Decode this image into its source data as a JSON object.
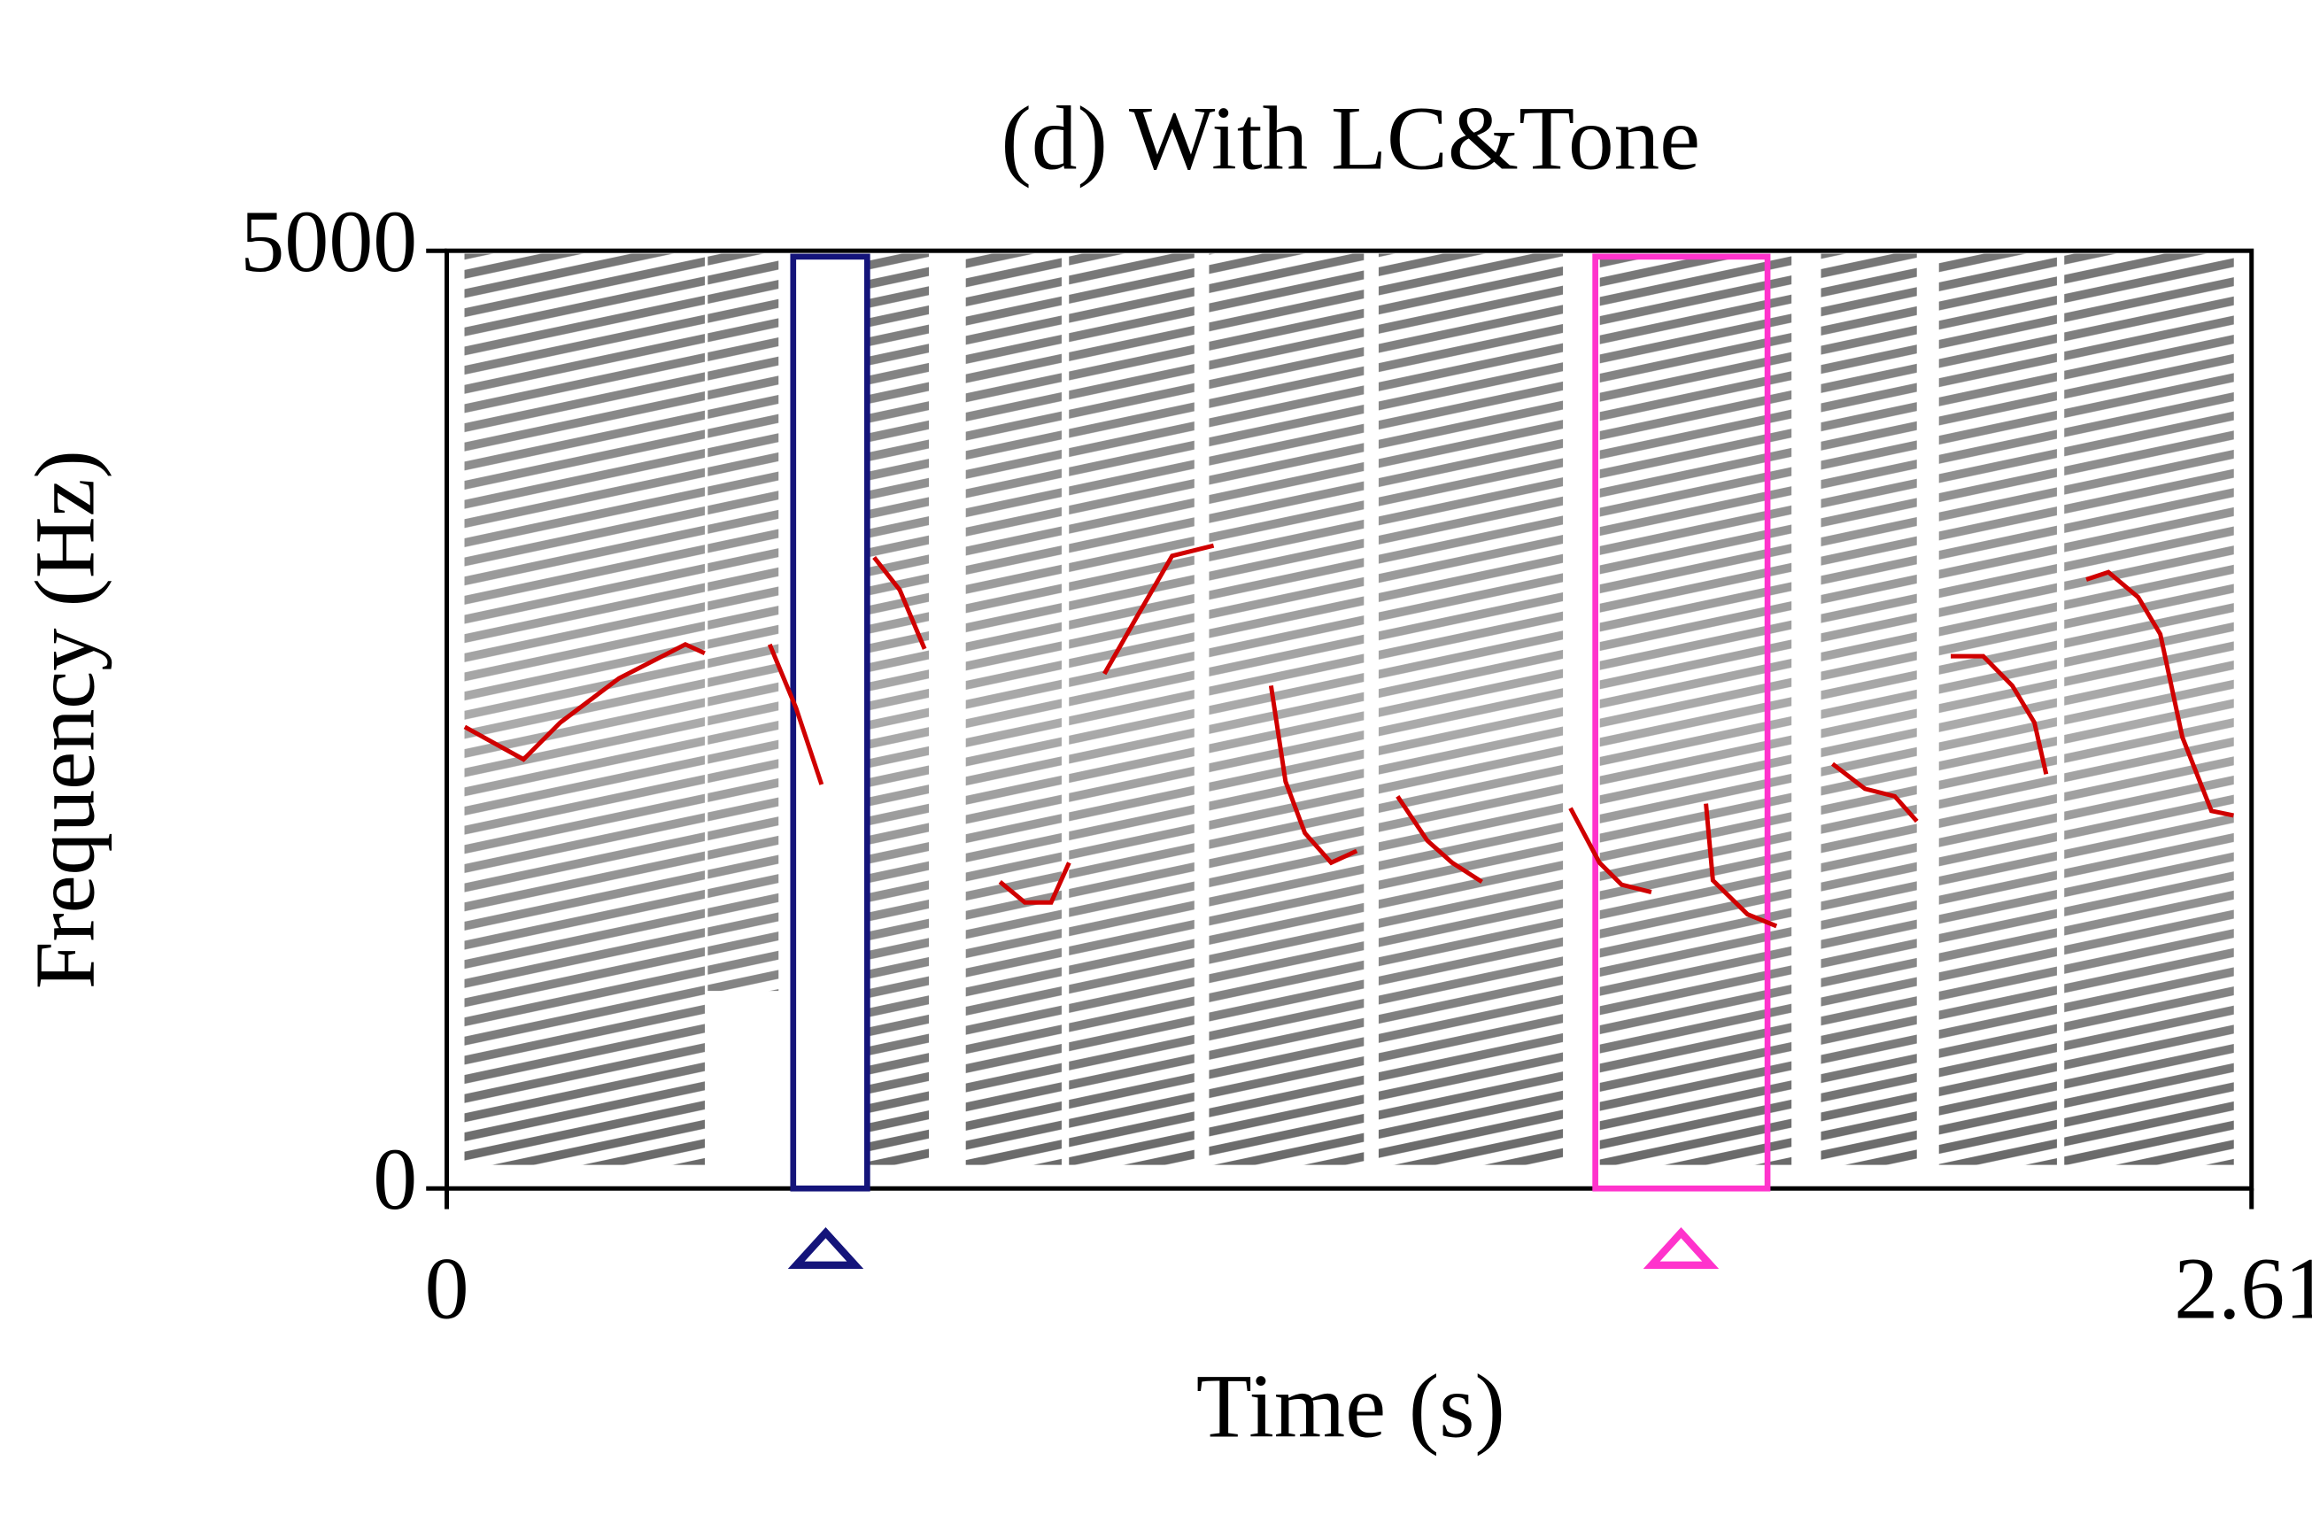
{
  "chart_data": {
    "type": "spectrogram",
    "title": "(d) With LC&Tone",
    "xlabel": "Time (s)",
    "ylabel": "Frequency (Hz)",
    "xlim": [
      0,
      2.61
    ],
    "ylim": [
      0,
      5000
    ],
    "xticks": [
      0,
      2.61
    ],
    "yticks": [
      0,
      5000
    ],
    "pitch_contour": {
      "color": "#d00000",
      "x": [
        0.026,
        0.111,
        0.164,
        0.249,
        0.345,
        0.373,
        null,
        0.467,
        0.505,
        0.542,
        null,
        0.618,
        0.655,
        0.691,
        null,
        0.8,
        0.836,
        0.874,
        0.9,
        null,
        0.951,
        0.996,
        1.049,
        1.109,
        null,
        1.192,
        1.213,
        1.241,
        1.279,
        1.316,
        null,
        1.375,
        1.418,
        1.454,
        1.497,
        null,
        1.625,
        1.667,
        1.699,
        1.742,
        null,
        1.821,
        1.831,
        1.881,
        1.923,
        null,
        2.004,
        2.051,
        2.094,
        2.126,
        null,
        2.175,
        2.222,
        2.264,
        2.296,
        2.313,
        null,
        2.371,
        2.403,
        2.446,
        2.478,
        2.51,
        2.552,
        2.584
      ],
      "values": [
        2461,
        2288,
        2484,
        2720,
        2901,
        2854,
        null,
        2901,
        2563,
        2154,
        null,
        3365,
        3192,
        2877,
        null,
        1635,
        1525,
        1525,
        1737,
        null,
        2744,
        3035,
        3373,
        3428,
        null,
        2681,
        2170,
        1895,
        1737,
        1800,
        null,
        2091,
        1855,
        1737,
        1635,
        null,
        2028,
        1737,
        1620,
        1580,
        null,
        2052,
        1643,
        1462,
        1399,
        null,
        2264,
        2131,
        2091,
        1958,
        null,
        2838,
        2838,
        2681,
        2484,
        2209,
        null,
        3247,
        3286,
        3153,
        2956,
        2406,
        2013,
        1989
      ]
    },
    "highlights": [
      {
        "color": "#14147a",
        "x": [
          0.501,
          0.608
        ],
        "marker": 0.548
      },
      {
        "color": "#ff33cc",
        "x": [
          1.661,
          1.91
        ],
        "marker": 1.785
      }
    ]
  }
}
